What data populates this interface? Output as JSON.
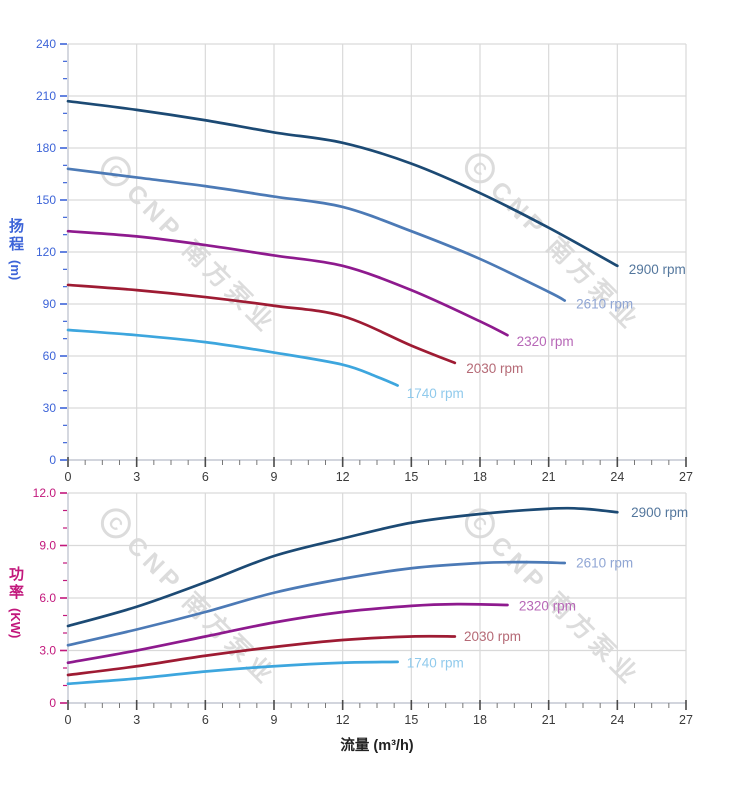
{
  "watermark": {
    "text": "CNP 南方泵业",
    "logo_glyph": "C",
    "color": "#dcdcdc"
  },
  "palette": {
    "grid": "#d9d9d9",
    "axis_line": "#c3c7d2",
    "x_tick_color": "#4a4a4a",
    "head_axis_color": "#3d64d8",
    "power_axis_color": "#c2187c"
  },
  "chart_data": [
    {
      "type": "line",
      "name": "head-vs-flow",
      "title": "",
      "x_axis": {
        "label": "",
        "lim": [
          0,
          27
        ],
        "major_ticks": [
          0,
          3,
          6,
          9,
          12,
          15,
          18,
          21,
          24,
          27
        ],
        "tick_labels": [
          "0",
          "3",
          "6",
          "9",
          "12",
          "15",
          "18",
          "21",
          "24",
          "27"
        ],
        "minor_step": 0.75
      },
      "y_axis": {
        "label": "扬程",
        "unit": "(m)",
        "color": "#3d64d8",
        "lim": [
          0,
          240
        ],
        "major_ticks": [
          0,
          30,
          60,
          90,
          120,
          150,
          180,
          210,
          240
        ],
        "tick_labels": [
          "0",
          "30",
          "60",
          "90",
          "120",
          "150",
          "180",
          "210",
          "240"
        ],
        "minor_step": 10
      },
      "grid": true,
      "legend_position": "curve-end-labels",
      "series": [
        {
          "name": "2900 rpm",
          "color": "#1c4a74",
          "label_color": "#54779d",
          "points": [
            [
              0,
              207
            ],
            [
              3,
              202
            ],
            [
              6,
              196
            ],
            [
              9,
              189
            ],
            [
              12,
              183
            ],
            [
              15,
              171
            ],
            [
              18,
              154
            ],
            [
              21,
              134
            ],
            [
              24,
              112
            ]
          ],
          "label_at": [
            24.5,
            110
          ]
        },
        {
          "name": "2610 rpm",
          "color": "#4c7ab6",
          "label_color": "#90a6d4",
          "points": [
            [
              0,
              168
            ],
            [
              3,
              163
            ],
            [
              6,
              158
            ],
            [
              9,
              152
            ],
            [
              12,
              146
            ],
            [
              15,
              132
            ],
            [
              18,
              116
            ],
            [
              21,
              97
            ],
            [
              21.7,
              92
            ]
          ],
          "label_at": [
            22.2,
            90
          ]
        },
        {
          "name": "2320 rpm",
          "color": "#8e1a8e",
          "label_color": "#b767b7",
          "points": [
            [
              0,
              132
            ],
            [
              3,
              129
            ],
            [
              6,
              124
            ],
            [
              9,
              118
            ],
            [
              12,
              112
            ],
            [
              15,
              98
            ],
            [
              18,
              80
            ],
            [
              19.2,
              72
            ]
          ],
          "label_at": [
            19.6,
            68.5
          ]
        },
        {
          "name": "2030 rpm",
          "color": "#9e1b33",
          "label_color": "#b56a76",
          "points": [
            [
              0,
              101
            ],
            [
              3,
              98
            ],
            [
              6,
              94
            ],
            [
              9,
              89
            ],
            [
              12,
              83
            ],
            [
              15,
              66
            ],
            [
              16.9,
              56
            ]
          ],
          "label_at": [
            17.4,
            53
          ]
        },
        {
          "name": "1740 rpm",
          "color": "#3da6de",
          "label_color": "#90caec",
          "points": [
            [
              0,
              75
            ],
            [
              3,
              72
            ],
            [
              6,
              68
            ],
            [
              9,
              62
            ],
            [
              12,
              55
            ],
            [
              13.5,
              48
            ],
            [
              14.4,
              43
            ]
          ],
          "label_at": [
            14.8,
            38.5
          ]
        }
      ]
    },
    {
      "type": "line",
      "name": "power-vs-flow",
      "title": "",
      "x_axis": {
        "label": "流量 (m³/h)",
        "lim": [
          0,
          27
        ],
        "major_ticks": [
          0,
          3,
          6,
          9,
          12,
          15,
          18,
          21,
          24,
          27
        ],
        "tick_labels": [
          "0",
          "3",
          "6",
          "9",
          "12",
          "15",
          "18",
          "21",
          "24",
          "27"
        ],
        "minor_step": 0.75
      },
      "y_axis": {
        "label": "功率",
        "unit": "(KW)",
        "color": "#c2187c",
        "lim": [
          0,
          12
        ],
        "major_ticks": [
          0,
          3,
          6,
          9,
          12
        ],
        "tick_labels": [
          "0",
          "3.0",
          "6.0",
          "9.0",
          "12.0"
        ],
        "minor_step": 1
      },
      "grid": true,
      "legend_position": "curve-end-labels",
      "series": [
        {
          "name": "2900 rpm",
          "color": "#1c4a74",
          "label_color": "#54779d",
          "points": [
            [
              0,
              4.4
            ],
            [
              3,
              5.5
            ],
            [
              6,
              6.9
            ],
            [
              9,
              8.4
            ],
            [
              12,
              9.4
            ],
            [
              15,
              10.3
            ],
            [
              18,
              10.8
            ],
            [
              21,
              11.1
            ],
            [
              22.5,
              11.1
            ],
            [
              24,
              10.9
            ]
          ],
          "label_at": [
            24.6,
            10.9
          ]
        },
        {
          "name": "2610 rpm",
          "color": "#4c7ab6",
          "label_color": "#90a6d4",
          "points": [
            [
              0,
              3.3
            ],
            [
              3,
              4.2
            ],
            [
              6,
              5.2
            ],
            [
              9,
              6.3
            ],
            [
              12,
              7.1
            ],
            [
              15,
              7.7
            ],
            [
              18,
              8.0
            ],
            [
              20,
              8.05
            ],
            [
              21.7,
              8.0
            ]
          ],
          "label_at": [
            22.2,
            8.0
          ]
        },
        {
          "name": "2320 rpm",
          "color": "#8e1a8e",
          "label_color": "#b767b7",
          "points": [
            [
              0,
              2.3
            ],
            [
              3,
              3.0
            ],
            [
              6,
              3.8
            ],
            [
              9,
              4.6
            ],
            [
              12,
              5.2
            ],
            [
              15,
              5.55
            ],
            [
              17,
              5.65
            ],
            [
              19.2,
              5.6
            ]
          ],
          "label_at": [
            19.7,
            5.55
          ]
        },
        {
          "name": "2030 rpm",
          "color": "#9e1b33",
          "label_color": "#b56a76",
          "points": [
            [
              0,
              1.6
            ],
            [
              3,
              2.1
            ],
            [
              6,
              2.7
            ],
            [
              9,
              3.2
            ],
            [
              12,
              3.6
            ],
            [
              15,
              3.8
            ],
            [
              16.9,
              3.8
            ]
          ],
          "label_at": [
            17.3,
            3.8
          ]
        },
        {
          "name": "1740 rpm",
          "color": "#3da6de",
          "label_color": "#90caec",
          "points": [
            [
              0,
              1.1
            ],
            [
              3,
              1.4
            ],
            [
              6,
              1.8
            ],
            [
              9,
              2.1
            ],
            [
              12,
              2.3
            ],
            [
              14.4,
              2.35
            ]
          ],
          "label_at": [
            14.8,
            2.3
          ]
        }
      ]
    }
  ]
}
